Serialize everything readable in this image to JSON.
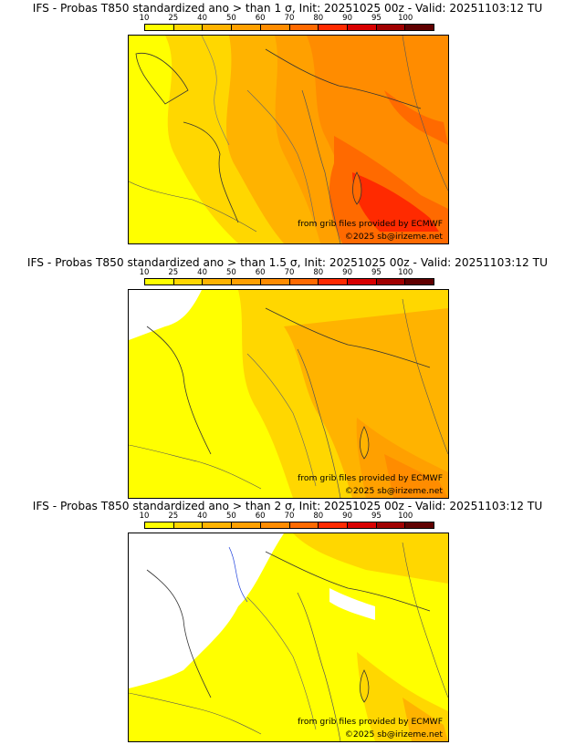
{
  "colorbar": {
    "labels": [
      "10",
      "25",
      "40",
      "50",
      "60",
      "70",
      "80",
      "90",
      "95",
      "100"
    ],
    "colors": [
      "#ffff00",
      "#ffd700",
      "#ffb300",
      "#ffa000",
      "#ff8c00",
      "#ff6a00",
      "#ff2a00",
      "#d80000",
      "#a00000",
      "#600000"
    ]
  },
  "credits": {
    "source": "from grib files provided by ECMWF",
    "copyright": "©2025 sb@irizeme.net"
  },
  "panels": [
    {
      "title": "IFS - Probas T850  standardized ano > than 1 σ, Init: 20251025 00z - Valid: 20251103:12 TU",
      "threshold_sigma": 1,
      "dominant_probability_band": "60-70",
      "max_probability_band": "80-90"
    },
    {
      "title": "IFS - Probas T850  standardized ano > than 1.5 σ, Init: 20251025 00z - Valid: 20251103:12 TU",
      "threshold_sigma": 1.5,
      "dominant_probability_band": "25-40",
      "max_probability_band": "60-70"
    },
    {
      "title": "IFS - Probas T850  standardized ano > than 2 σ, Init: 20251025 00z - Valid: 20251103:12 TU",
      "threshold_sigma": 2,
      "dominant_probability_band": "10-25",
      "max_probability_band": "40-50"
    }
  ]
}
